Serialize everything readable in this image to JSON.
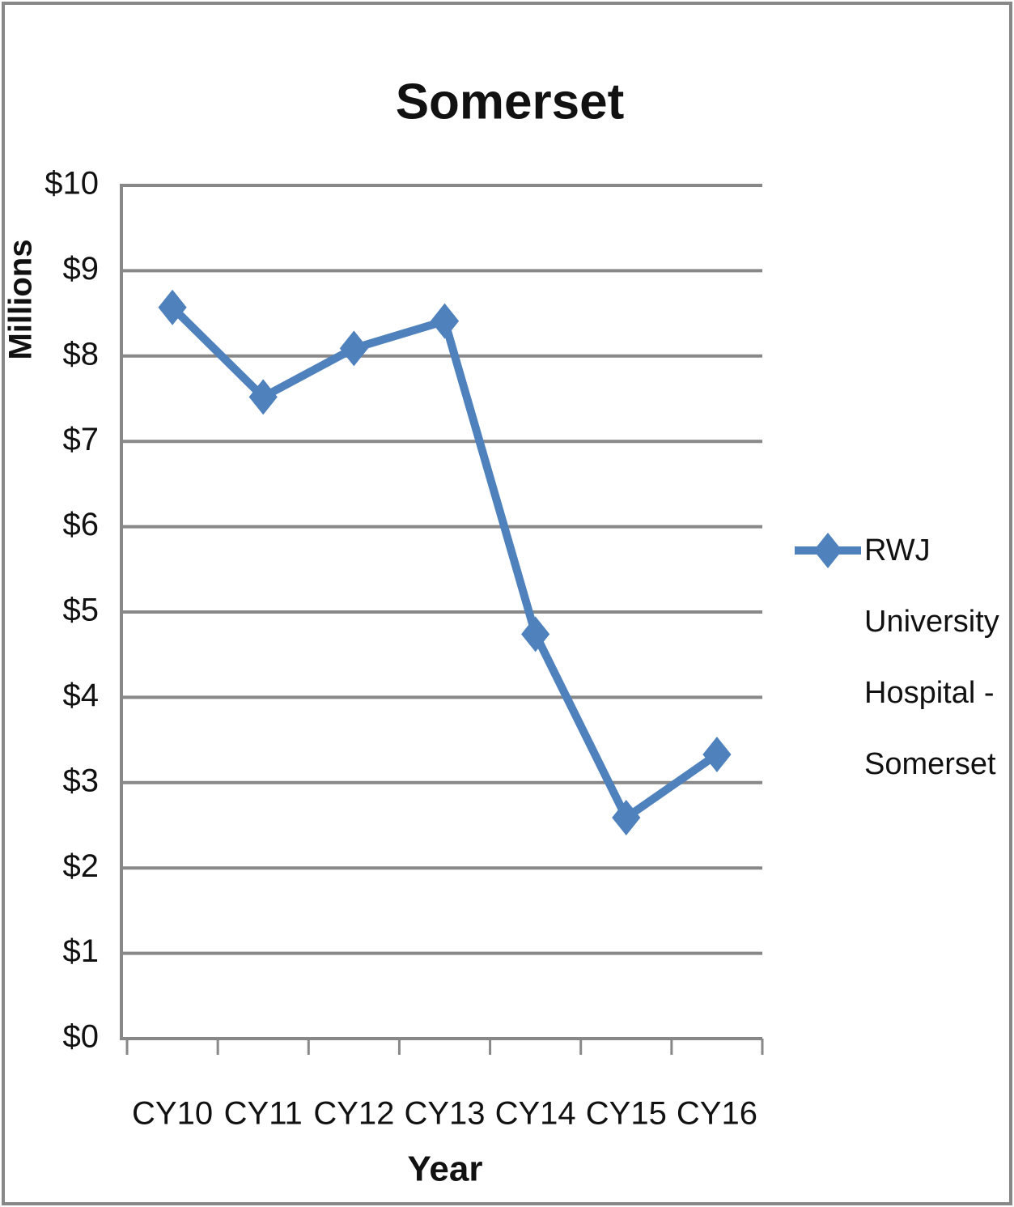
{
  "chart_data": {
    "type": "line",
    "title": "Somerset",
    "y_label": "Millions",
    "x_label": "Year",
    "categories": [
      "CY10",
      "CY11",
      "CY12",
      "CY13",
      "CY14",
      "CY15",
      "CY16"
    ],
    "series": [
      {
        "name": "RWJ University Hospital - Somerset",
        "color": "#4f81bd",
        "values": [
          8.57,
          7.52,
          8.09,
          8.41,
          4.74,
          2.59,
          3.33
        ]
      }
    ],
    "ylim": [
      0,
      10
    ],
    "yticks": [
      {
        "value": 0,
        "label": "$0"
      },
      {
        "value": 1,
        "label": "$1"
      },
      {
        "value": 2,
        "label": "$2"
      },
      {
        "value": 3,
        "label": "$3"
      },
      {
        "value": 4,
        "label": "$4"
      },
      {
        "value": 5,
        "label": "$5"
      },
      {
        "value": 6,
        "label": "$6"
      },
      {
        "value": 7,
        "label": "$7"
      },
      {
        "value": 8,
        "label": "$8"
      },
      {
        "value": 9,
        "label": "$9"
      },
      {
        "value": 10,
        "label": "$10"
      }
    ],
    "grid": true,
    "legend": "right"
  }
}
